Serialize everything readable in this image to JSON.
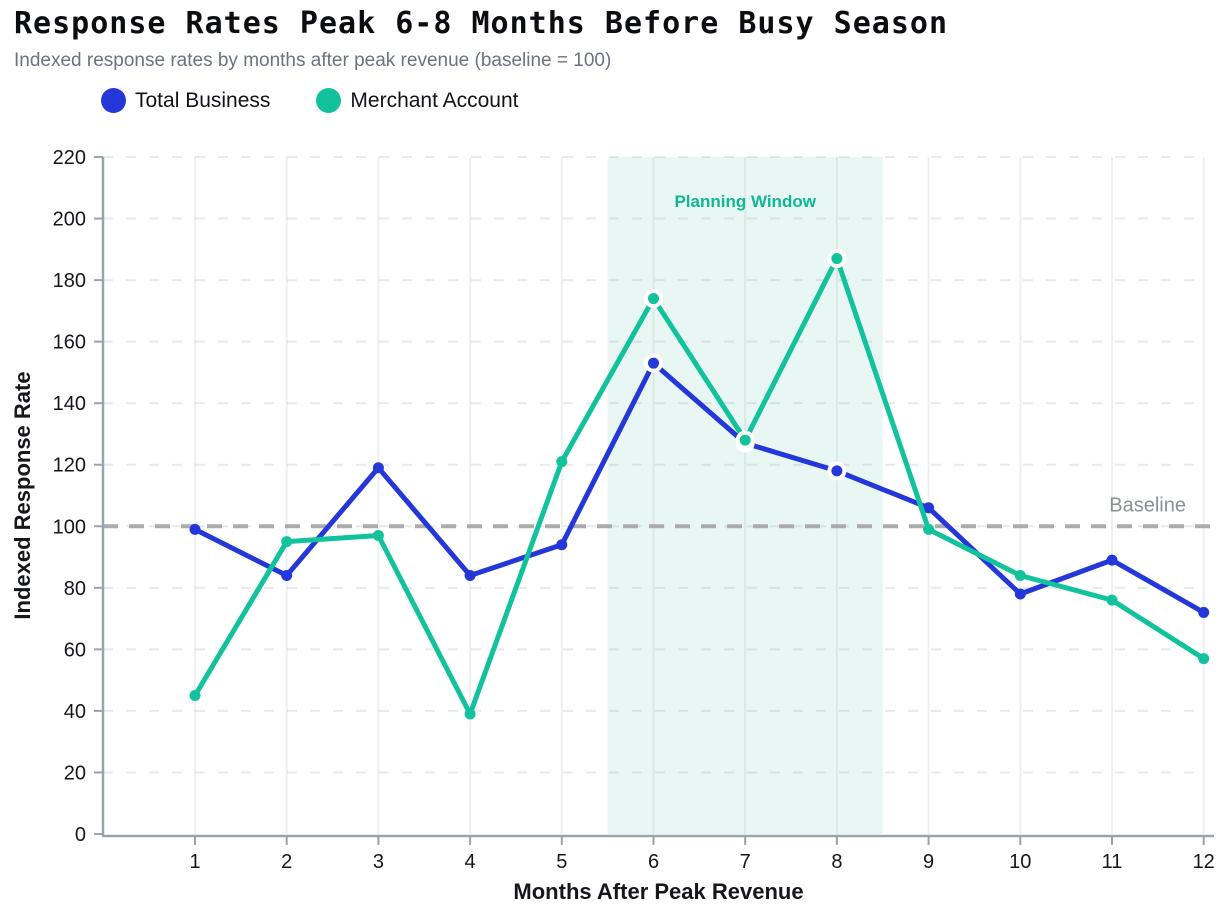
{
  "header": {
    "title": "Response Rates Peak 6-8 Months Before Busy Season",
    "subtitle": "Indexed response rates by months after peak revenue (baseline = 100)"
  },
  "colors": {
    "total_business": "#2438d9",
    "merchant_account": "#12c29c",
    "planning_window_fill": "#e8f7f3",
    "planning_window_label": "#10b795",
    "baseline_line": "#ababae",
    "baseline_label": "#8b9098",
    "axis_spine": "#9aa3ad",
    "tick_label": "#15171c",
    "title_text": "#0c0d10",
    "subtitle_text": "#6b7280"
  },
  "chart_data": {
    "type": "line",
    "x": [
      1,
      2,
      3,
      4,
      5,
      6,
      7,
      8,
      9,
      10,
      11,
      12
    ],
    "series": [
      {
        "name": "Total Business",
        "color": "#2438d9",
        "values": [
          99,
          84,
          119,
          84,
          94,
          153,
          127,
          118,
          106,
          78,
          89,
          72
        ]
      },
      {
        "name": "Merchant Account",
        "color": "#12c29c",
        "values": [
          45,
          95,
          97,
          39,
          121,
          174,
          128,
          187,
          99,
          84,
          76,
          57
        ]
      }
    ],
    "title": "Response Rates Peak 6-8 Months Before Busy Season",
    "subtitle": "Indexed response rates by months after peak revenue (baseline = 100)",
    "xlabel": "Months After Peak Revenue",
    "ylabel": "Indexed Response Rate",
    "ylim": [
      0,
      220
    ],
    "ytick_step": 20,
    "grid": true,
    "legend_position": "top-left",
    "baseline": {
      "value": 100,
      "label": "Baseline"
    },
    "planning_window": {
      "x_start": 5.5,
      "x_end": 8.5,
      "label": "Planning Window"
    },
    "highlight_months": [
      6,
      7,
      8
    ]
  }
}
